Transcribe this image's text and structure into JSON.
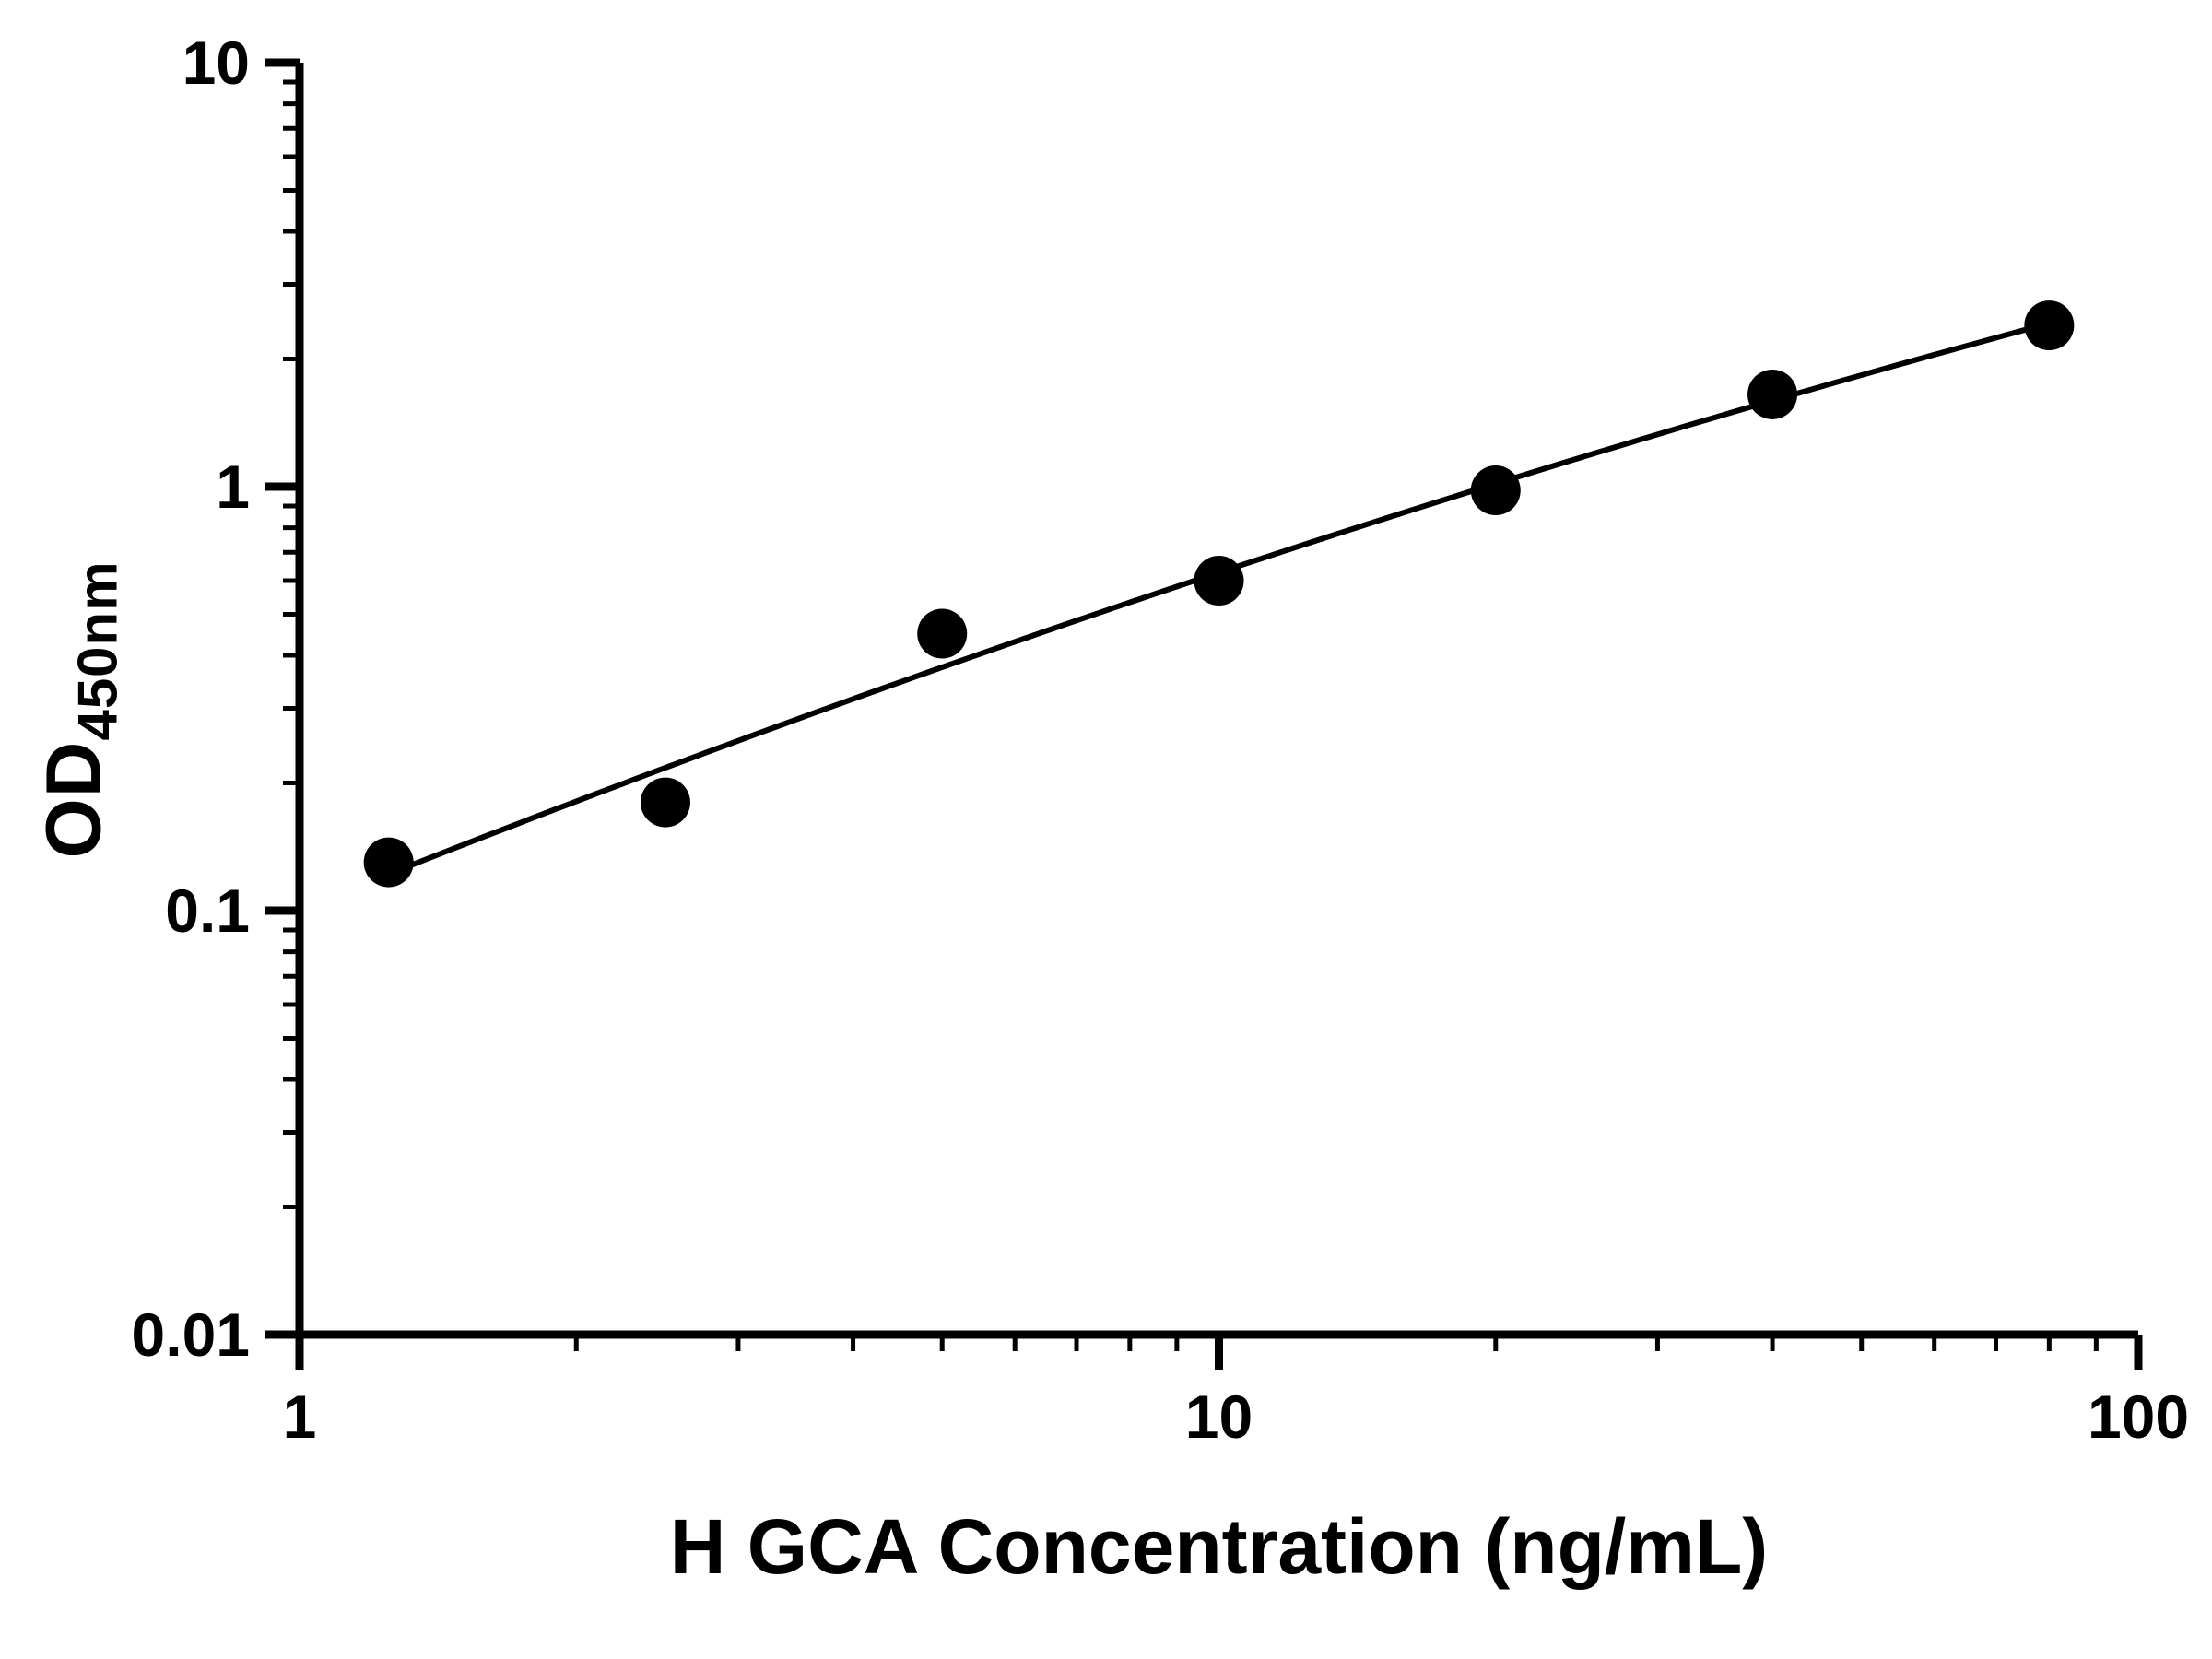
{
  "chart_data": {
    "type": "scatter",
    "title": "",
    "xlabel": "H GCA Concentration (ng/mL)",
    "ylabel_main": "OD",
    "ylabel_sub": "450nm",
    "x_scale": "log",
    "y_scale": "log",
    "xlim": [
      1,
      100
    ],
    "ylim": [
      0.01,
      10
    ],
    "x_ticks": [
      {
        "value": 1,
        "label": "1"
      },
      {
        "value": 10,
        "label": "10"
      },
      {
        "value": 100,
        "label": "100"
      }
    ],
    "y_ticks": [
      {
        "value": 10,
        "label": "10"
      },
      {
        "value": 1,
        "label": "1"
      },
      {
        "value": 0.1,
        "label": "0.1"
      },
      {
        "value": 0.01,
        "label": "0.01"
      }
    ],
    "points": [
      {
        "x": 1.25,
        "y": 0.13
      },
      {
        "x": 2.5,
        "y": 0.18
      },
      {
        "x": 5,
        "y": 0.45
      },
      {
        "x": 10,
        "y": 0.6
      },
      {
        "x": 20,
        "y": 0.98
      },
      {
        "x": 40,
        "y": 1.65
      },
      {
        "x": 80,
        "y": 2.4
      }
    ],
    "curve": {
      "style": "smooth fit curve through data points (quadratic least squares in log-log space)",
      "x_start": 1.25,
      "x_end": 80
    },
    "marker_color": "#000000",
    "line_color": "#000000",
    "axis_color": "#000000",
    "background_color": "#ffffff",
    "grid": false,
    "legend": false
  }
}
